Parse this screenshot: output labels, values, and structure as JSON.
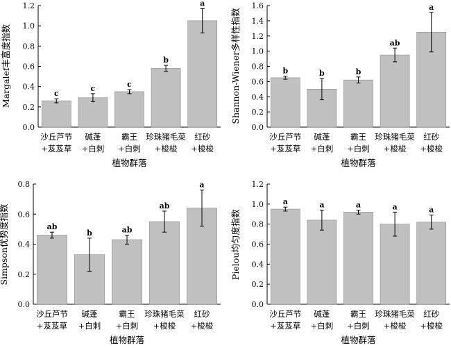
{
  "chart_data": [
    {
      "type": "bar",
      "title": "",
      "xlabel": "植物群落",
      "ylabel": "Margalef丰富度指数",
      "ylim": [
        0,
        1.2
      ],
      "yticks": [
        0,
        0.2,
        0.4,
        0.6,
        0.8,
        1.0,
        1.2
      ],
      "ytick_labels": [
        "0.0",
        "0.2",
        "0.4",
        "0.6",
        "0.8",
        "1.0",
        "1.2"
      ],
      "categories": [
        {
          "line1": "沙丘芦节",
          "line2": "+芨芨草"
        },
        {
          "line1": "碱蓬",
          "line2": "+白刺"
        },
        {
          "line1": "霸王",
          "line2": "+白刺"
        },
        {
          "line1": "珍珠猪毛菜",
          "line2": "+梭梭"
        },
        {
          "line1": "红砂",
          "line2": "+梭梭"
        }
      ],
      "values": [
        0.26,
        0.29,
        0.35,
        0.58,
        1.05
      ],
      "errors": [
        0.02,
        0.04,
        0.02,
        0.03,
        0.12
      ],
      "significance": [
        "c",
        "c",
        "c",
        "b",
        "a"
      ],
      "bar_color": "#c0c0c0",
      "grid": false
    },
    {
      "type": "bar",
      "title": "",
      "xlabel": "植物群落",
      "ylabel": "Shannon-Wiener多样性指数",
      "ylim": [
        0,
        1.6
      ],
      "yticks": [
        0,
        0.2,
        0.4,
        0.6,
        0.8,
        1.0,
        1.2,
        1.4,
        1.6
      ],
      "ytick_labels": [
        "0.0",
        "0.2",
        "0.4",
        "0.6",
        "0.8",
        "1.0",
        "1.2",
        "1.4",
        "1.6"
      ],
      "categories": [
        {
          "line1": "沙丘芦节",
          "line2": "+芨芨草"
        },
        {
          "line1": "碱蓬",
          "line2": "+白刺"
        },
        {
          "line1": "霸王",
          "line2": "+白刺"
        },
        {
          "line1": "珍珠猪毛菜",
          "line2": "+梭梭"
        },
        {
          "line1": "红砂",
          "line2": "+梭梭"
        }
      ],
      "values": [
        0.65,
        0.5,
        0.62,
        0.95,
        1.25
      ],
      "errors": [
        0.02,
        0.14,
        0.04,
        0.09,
        0.26
      ],
      "significance": [
        "b",
        "b",
        "b",
        "ab",
        "a"
      ],
      "bar_color": "#c0c0c0",
      "grid": false
    },
    {
      "type": "bar",
      "title": "",
      "xlabel": "植物群落",
      "ylabel": "Simpson优势度指数",
      "ylim": [
        0,
        0.8
      ],
      "yticks": [
        0,
        0.2,
        0.4,
        0.6,
        0.8
      ],
      "ytick_labels": [
        "0.0",
        "0.2",
        "0.4",
        "0.6",
        "0.8"
      ],
      "categories": [
        {
          "line1": "沙丘芦节",
          "line2": "+芨芨草"
        },
        {
          "line1": "碱蓬",
          "line2": "+白刺"
        },
        {
          "line1": "霸王",
          "line2": "+白刺"
        },
        {
          "line1": "珍珠猪毛菜",
          "line2": "+梭梭"
        },
        {
          "line1": "红砂",
          "line2": "+梭梭"
        }
      ],
      "values": [
        0.46,
        0.33,
        0.43,
        0.55,
        0.64
      ],
      "errors": [
        0.02,
        0.11,
        0.03,
        0.07,
        0.12
      ],
      "significance": [
        "ab",
        "b",
        "ab",
        "ab",
        "a"
      ],
      "bar_color": "#c0c0c0",
      "grid": false
    },
    {
      "type": "bar",
      "title": "",
      "xlabel": "植物群落",
      "ylabel": "Pielou均匀度指数",
      "ylim": [
        0,
        1.2
      ],
      "yticks": [
        0,
        0.2,
        0.4,
        0.6,
        0.8,
        1.0,
        1.2
      ],
      "ytick_labels": [
        "0.0",
        "0.2",
        "0.4",
        "0.6",
        "0.8",
        "1.0",
        "1.2"
      ],
      "categories": [
        {
          "line1": "沙丘芦节",
          "line2": "+芨芨草"
        },
        {
          "line1": "碱蓬",
          "line2": "+白刺"
        },
        {
          "line1": "霸王",
          "line2": "+白刺"
        },
        {
          "line1": "珍珠猪毛菜",
          "line2": "+梭梭"
        },
        {
          "line1": "红砂",
          "line2": "+梭梭"
        }
      ],
      "values": [
        0.95,
        0.84,
        0.92,
        0.8,
        0.82
      ],
      "errors": [
        0.02,
        0.1,
        0.02,
        0.12,
        0.07
      ],
      "significance": [
        "a",
        "a",
        "a",
        "a",
        "a"
      ],
      "bar_color": "#c0c0c0",
      "grid": false
    }
  ]
}
